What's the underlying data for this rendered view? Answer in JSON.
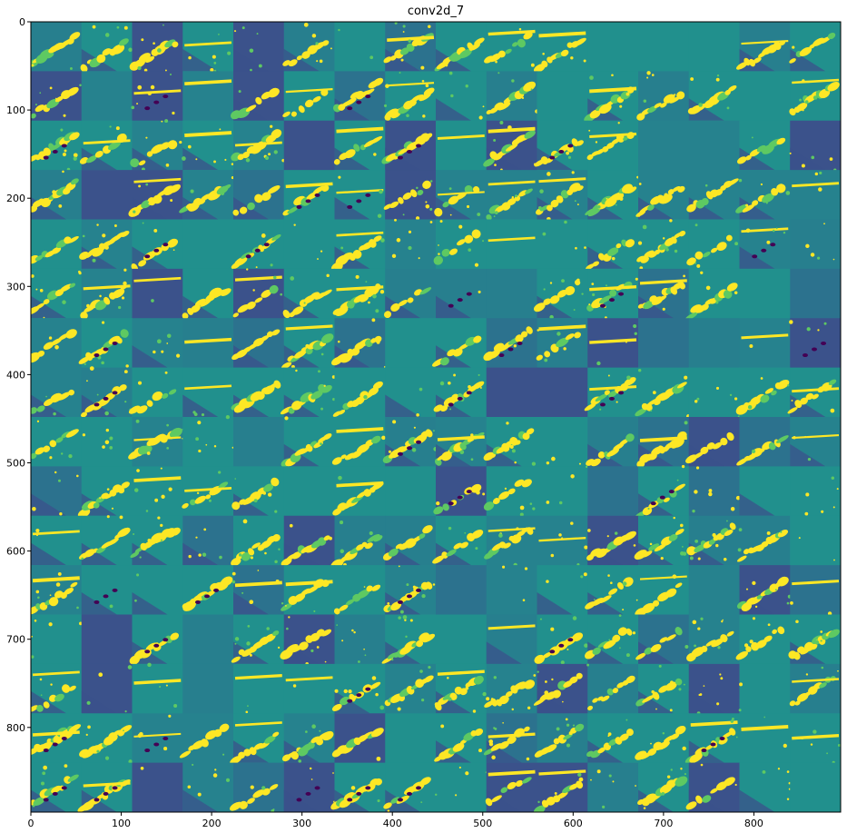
{
  "chart_data": {
    "type": "heatmap",
    "title": "conv2d_7",
    "xlabel": "",
    "ylabel": "",
    "xlim": [
      0,
      896
    ],
    "ylim": [
      896,
      0
    ],
    "x_ticks": [
      0,
      100,
      200,
      300,
      400,
      500,
      600,
      700,
      800
    ],
    "y_ticks": [
      0,
      100,
      200,
      300,
      400,
      500,
      600,
      700,
      800
    ],
    "grid": false,
    "tiles": {
      "rows": 16,
      "cols": 16,
      "tile_size": 56
    },
    "colormap": "viridis",
    "colors": {
      "background": "#21908d",
      "low": "#440154",
      "mid_low": "#3b528b",
      "mid": "#21908d",
      "mid_high": "#5ec962",
      "high": "#fde725"
    }
  }
}
